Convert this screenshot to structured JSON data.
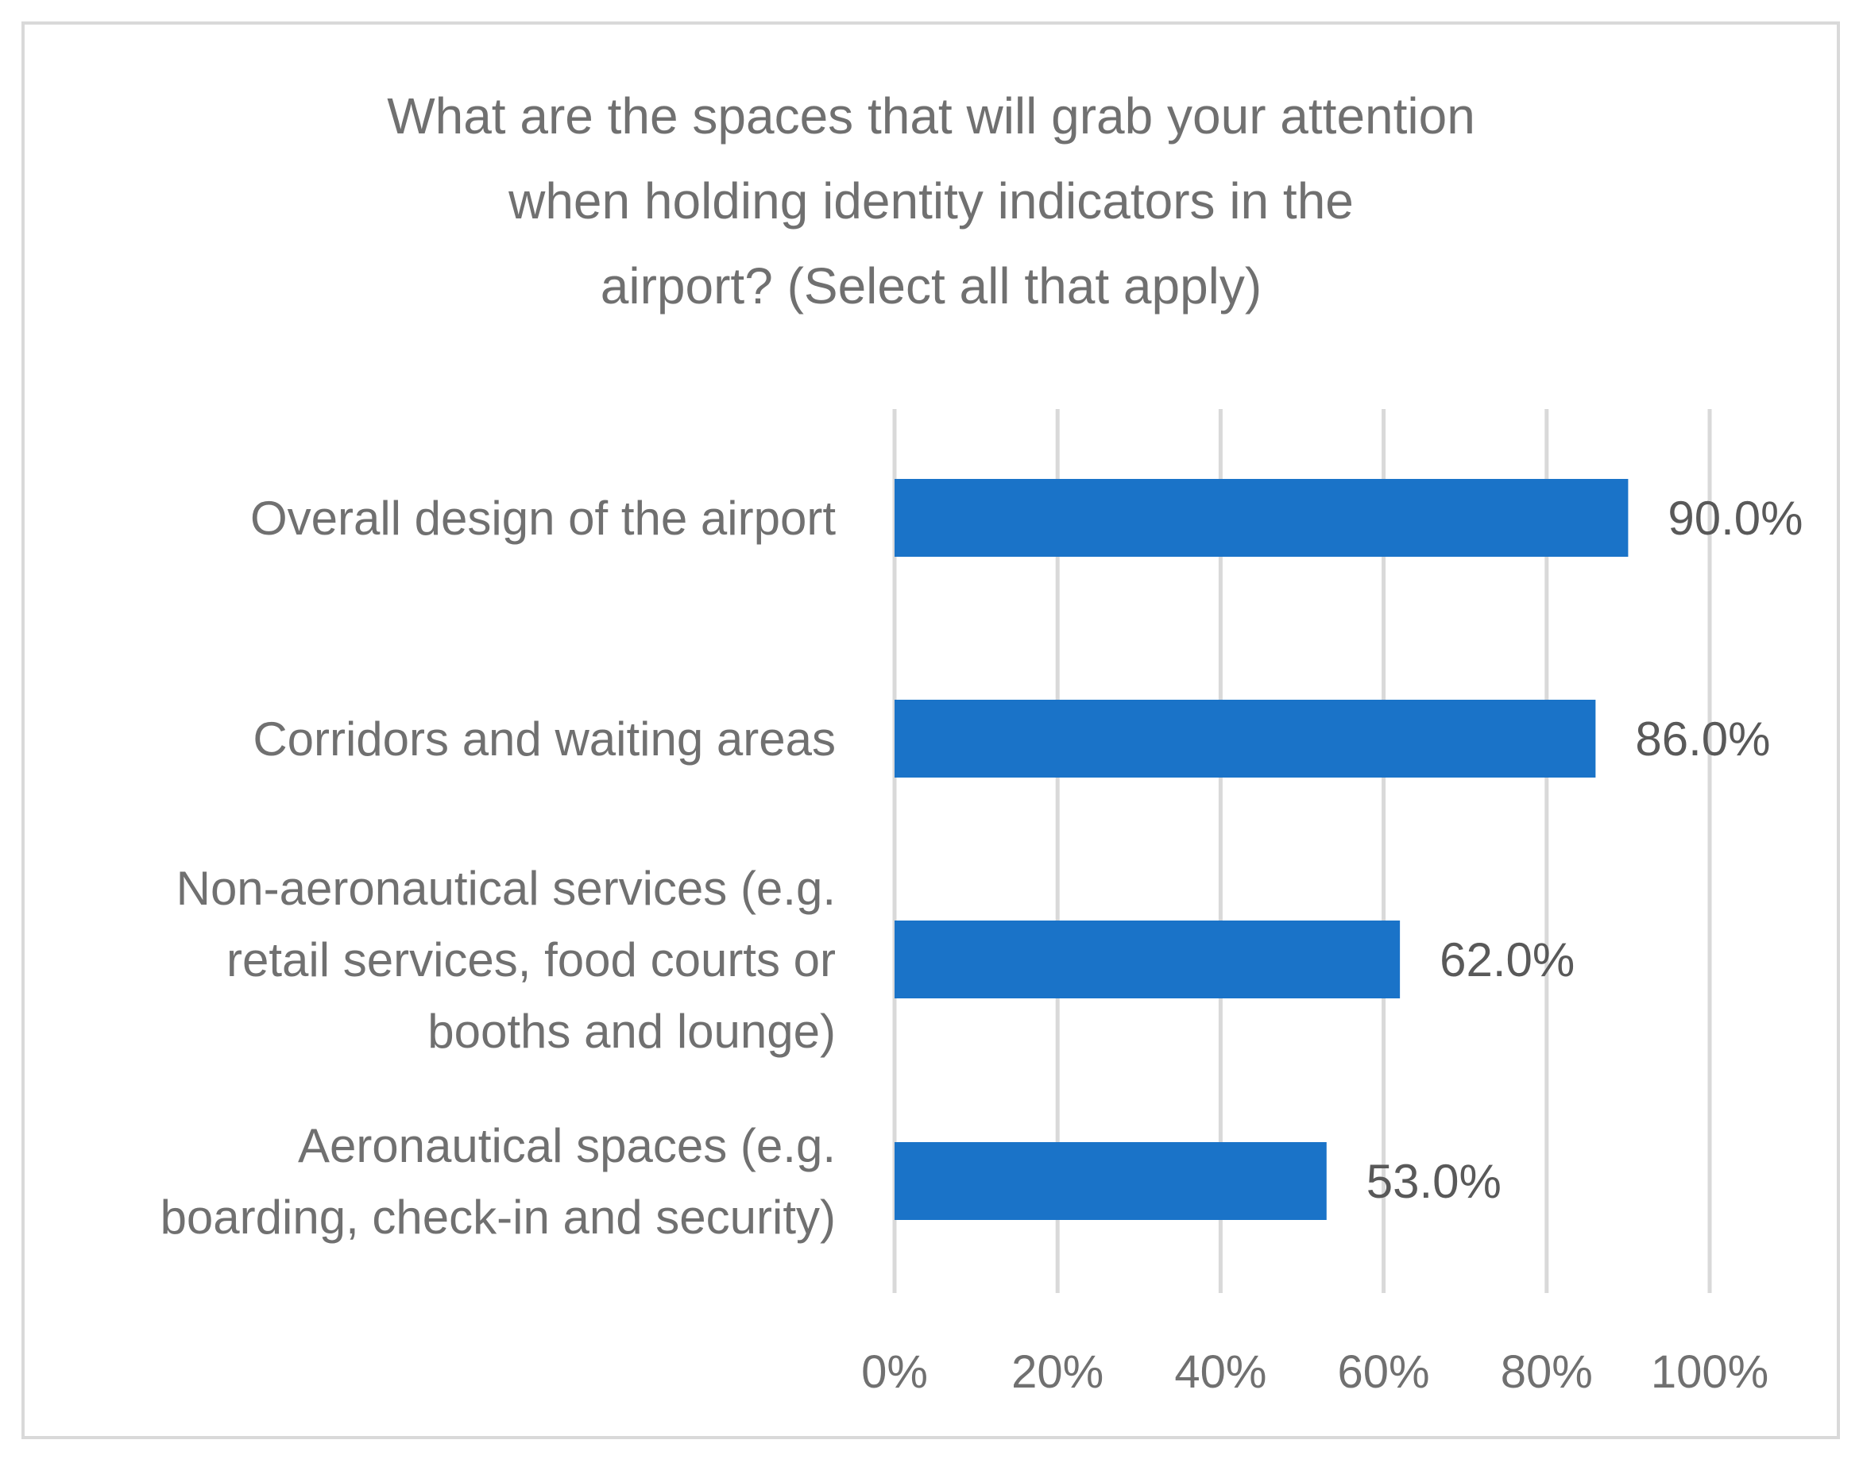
{
  "chart_data": {
    "type": "bar",
    "orientation": "horizontal",
    "title": "What are the spaces that will grab your attention when holding identity indicators in the airport? (Select all that apply)",
    "title_lines": [
      "What are the spaces that will grab your attention",
      "when holding identity indicators in the",
      "airport? (Select all that apply)"
    ],
    "categories": [
      "Overall design of the airport",
      "Corridors and waiting areas",
      "Non-aeronautical services (e.g. retail services, food courts or booths and lounge)",
      "Aeronautical spaces (e.g. boarding, check-in and security)"
    ],
    "category_lines": [
      [
        "Overall design of the airport"
      ],
      [
        "Corridors and waiting areas"
      ],
      [
        "Non-aeronautical services (e.g.",
        "retail services, food courts or",
        "booths and lounge)"
      ],
      [
        "Aeronautical spaces (e.g.",
        "boarding, check-in and security)"
      ]
    ],
    "values": [
      90.0,
      86.0,
      62.0,
      53.0
    ],
    "value_labels": [
      "90.0%",
      "86.0%",
      "62.0%",
      "53.0%"
    ],
    "xlim": [
      0,
      100
    ],
    "ticks": [
      0,
      20,
      40,
      60,
      80,
      100
    ],
    "tick_labels": [
      "0%",
      "20%",
      "40%",
      "60%",
      "80%",
      "100%"
    ],
    "xlabel": "",
    "ylabel": "",
    "grid": true,
    "legend": "none",
    "colors": {
      "bar": "#1a73c8",
      "grid": "#d9d9d9",
      "text": "#707070",
      "value_text": "#595959",
      "frame": "#d9d9d9"
    }
  }
}
